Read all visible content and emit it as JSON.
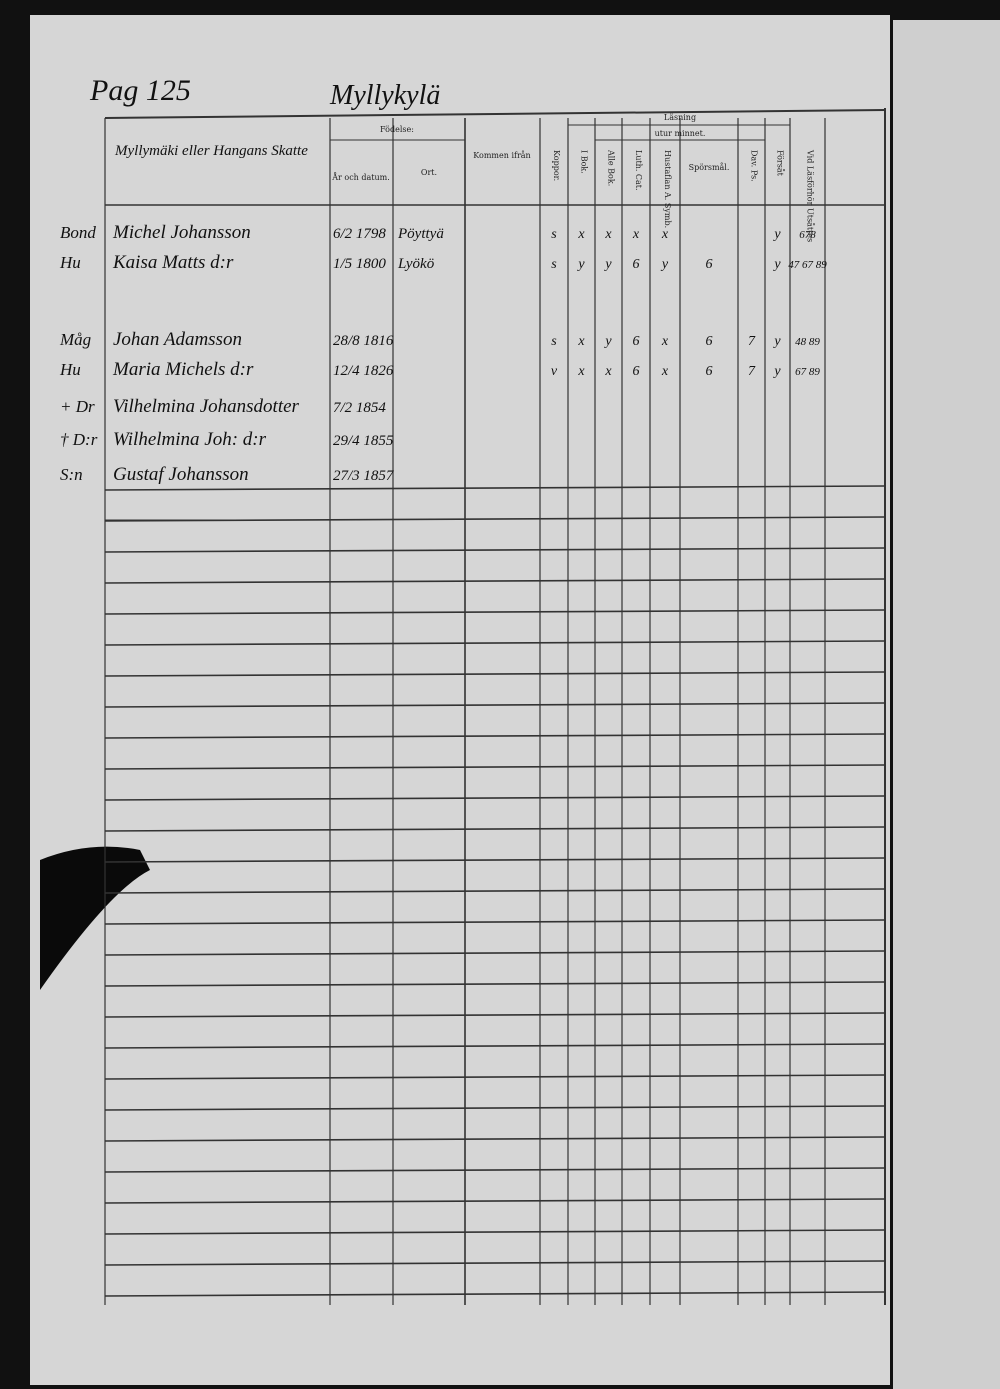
{
  "header": {
    "page": "Pag 125",
    "village": "Myllykylä"
  },
  "columns": {
    "name": "Myllymäki eller Hangans Skatte",
    "birth": "Födelse:",
    "year": "År och datum.",
    "place": "Ort.",
    "from": "Kommen ifrån",
    "koppor": "Koppor.",
    "reading": "Läsning",
    "memory": "utur minnet.",
    "i_bok": "I Bok.",
    "alle_bok": "Alle Bok.",
    "luth_cat": "Luth. Cat.",
    "hustaflan": "Hustaflan A. Symb.",
    "sporsmal": "Spörsmål.",
    "dav_ps": "Dav. Ps.",
    "forsat": "Försåt",
    "lasforhor": "Vid Läsförhör Utsåttes"
  },
  "rows": [
    {
      "title": "Bond",
      "name": "Michel Johansson",
      "date": "6/2 1798",
      "place": "Pöyttyä",
      "koppor": "s",
      "i_bok": "x",
      "alle_bok": "x",
      "luth_cat": "x",
      "hustaflan": "x",
      "forsat": "y",
      "lasforhor": "678"
    },
    {
      "title": "Hu",
      "name": "Kaisa Matts d:r",
      "date": "1/5 1800",
      "place": "Lyökö",
      "koppor": "s",
      "i_bok": "y",
      "alle_bok": "y",
      "luth_cat": "6",
      "hustaflan": "y",
      "sporsmal": "6",
      "forsat": "y",
      "lasforhor": "47 67 89"
    },
    {
      "title": "Måg",
      "name": "Johan Adamsson",
      "date": "28/8 1816",
      "koppor": "s",
      "i_bok": "x",
      "alle_bok": "y",
      "luth_cat": "6",
      "hustaflan": "x",
      "sporsmal": "6",
      "dav_ps": "7",
      "forsat": "y",
      "lasforhor": "48 89"
    },
    {
      "title": "Hu",
      "name": "Maria Michels d:r",
      "date": "12/4 1826",
      "koppor": "v",
      "i_bok": "x",
      "alle_bok": "x",
      "luth_cat": "6",
      "hustaflan": "x",
      "sporsmal": "6",
      "dav_ps": "7",
      "forsat": "y",
      "lasforhor": "67 89"
    },
    {
      "title": "+ Dr",
      "name": "Vilhelmina Johansdotter",
      "date": "7/2 1854"
    },
    {
      "title": "† D:r",
      "name": "Wilhelmina Joh: d:r",
      "date": "29/4 1855"
    },
    {
      "title": "S:n",
      "name": "Gustaf Johansson",
      "date": "27/3 1857"
    }
  ]
}
